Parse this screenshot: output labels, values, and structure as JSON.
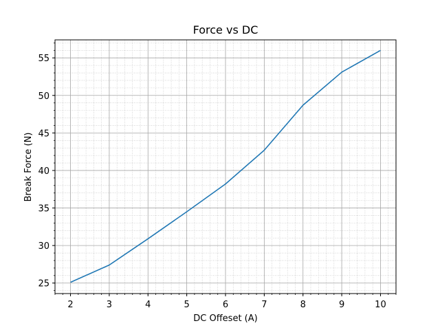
{
  "chart_data": {
    "type": "line",
    "title": "Force vs DC",
    "xlabel": "DC Offeset (A)",
    "ylabel": "Break Force (N)",
    "xlim": [
      1.6,
      10.4
    ],
    "ylim": [
      23.6,
      57.4
    ],
    "xticks": [
      2,
      3,
      4,
      5,
      6,
      7,
      8,
      9,
      10
    ],
    "yticks": [
      25,
      30,
      35,
      40,
      45,
      50,
      55
    ],
    "xtick_labels": [
      "2",
      "3",
      "4",
      "5",
      "6",
      "7",
      "8",
      "9",
      "10"
    ],
    "ytick_labels": [
      "25",
      "30",
      "35",
      "40",
      "45",
      "50",
      "55"
    ],
    "x_minor_step": 0.2,
    "y_minor_step": 1,
    "grid": true,
    "grid_minor": true,
    "series": [
      {
        "x": [
          2,
          3,
          4,
          5,
          6,
          7,
          8,
          9,
          10
        ],
        "y": [
          25.1,
          27.4,
          30.9,
          34.5,
          38.2,
          42.7,
          48.7,
          53.1,
          56.0
        ],
        "color": "#1f77b4"
      }
    ]
  }
}
